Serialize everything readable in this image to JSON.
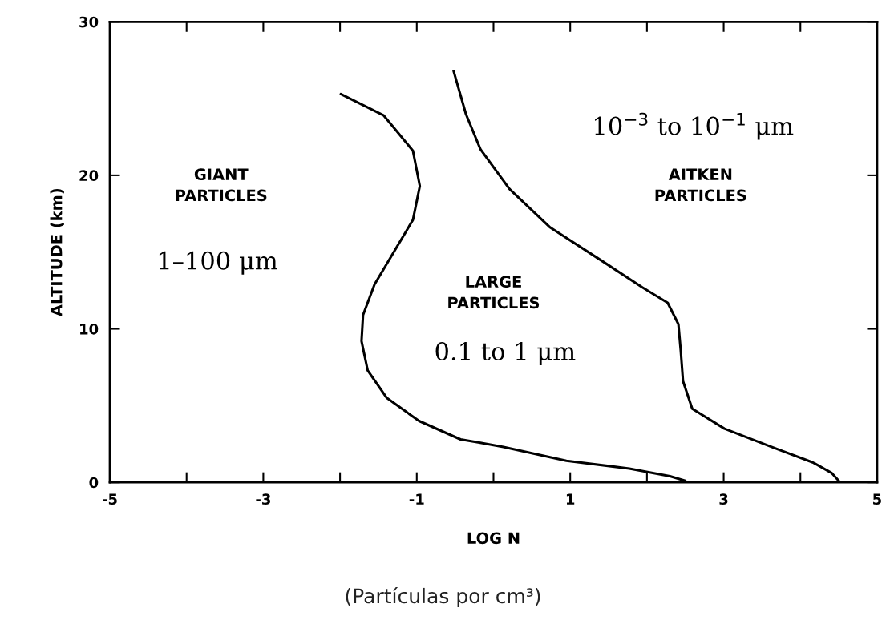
{
  "chart_data": {
    "type": "line",
    "xlabel": "LOG N",
    "ylabel": "ALTITUDE (km)",
    "xlim": [
      -5,
      5
    ],
    "ylim": [
      0,
      30
    ],
    "xticks": [
      -5,
      {
        "value": -4,
        "label": null
      },
      -3,
      {
        "value": -2,
        "label": null
      },
      -1,
      {
        "value": 0,
        "label": null
      },
      1,
      {
        "value": 2,
        "label": null
      },
      3,
      {
        "value": 4,
        "label": null
      },
      5
    ],
    "yticks": [
      0,
      10,
      20,
      30
    ],
    "grid": false,
    "legend": false,
    "marker": "none",
    "line_style": "solid",
    "series": [
      {
        "color": "#000000",
        "x": [
          -1.99,
          -1.43,
          -1.05,
          -0.96,
          -1.05,
          -1.3,
          -1.55,
          -1.7,
          -1.72,
          -1.64,
          -1.39,
          -0.97,
          -0.43,
          -0.2,
          0.13,
          0.95,
          1.77,
          2.3,
          2.5
        ],
        "values": [
          25.3,
          23.9,
          21.6,
          19.3,
          17.1,
          15.0,
          12.9,
          10.9,
          9.2,
          7.3,
          5.5,
          4.0,
          2.8,
          2.6,
          2.3,
          1.4,
          0.9,
          0.4,
          0.1
        ]
      },
      {
        "color": "#000000",
        "x": [
          -0.52,
          -0.36,
          -0.17,
          0.21,
          0.74,
          1.36,
          1.94,
          2.27,
          2.41,
          2.44,
          2.47,
          2.59,
          3.01,
          3.63,
          4.16,
          4.41,
          4.5
        ],
        "values": [
          26.8,
          24.0,
          21.7,
          19.1,
          16.6,
          14.6,
          12.7,
          11.7,
          10.3,
          8.6,
          6.6,
          4.8,
          3.5,
          2.3,
          1.3,
          0.6,
          0.1
        ]
      }
    ],
    "annotations": [
      "GIANT\nPARTICLES",
      "1–100 μm",
      "LARGE\nPARTICLES",
      "0.1 to 1 μm",
      "AITKEN\nPARTICLES",
      "10$^{−3}$ to 10$^{−1}$ μm",
      "(Partículas por cm³)"
    ]
  }
}
